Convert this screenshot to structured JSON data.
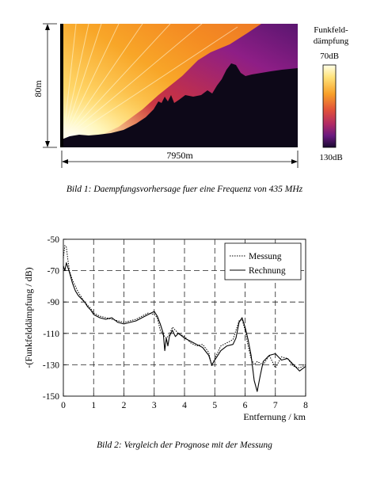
{
  "figure1": {
    "height_label": "80m",
    "width_label": "7950m",
    "legend_title_line1": "Funkfeld-",
    "legend_title_line2": "dämpfung",
    "legend_top": "70dB",
    "legend_bottom": "130dB",
    "caption": "Bild 1: Daempfungsvorhersage fuer eine Frequenz von 435 MHz",
    "colors": {
      "terrain": "#0d0818",
      "hot": "#fff4c8",
      "warm": "#f6a020",
      "mid": "#d0403a",
      "cool": "#8a1e8c",
      "cold": "#4a1468"
    }
  },
  "figure2": {
    "caption": "Bild 2: Vergleich der Prognose mit der Messung",
    "chart_data": {
      "type": "line",
      "title": "",
      "xlabel": "Entfernung / km",
      "ylabel": "-(Funkfelddämpfung / dB)",
      "xlim": [
        0,
        8
      ],
      "ylim": [
        -150,
        -50
      ],
      "xticks": [
        "0",
        "1",
        "2",
        "3",
        "4",
        "5",
        "6",
        "7",
        "8"
      ],
      "yticks": [
        "-50",
        "-70",
        "-90",
        "-110",
        "-130",
        "-150"
      ],
      "grid": "dashed",
      "legend_position": "top-right",
      "series": [
        {
          "name": "Messung",
          "style": "dotted",
          "x": [
            0.0,
            0.05,
            0.1,
            0.15,
            0.2,
            0.3,
            0.4,
            0.5,
            0.6,
            0.7,
            0.8,
            0.9,
            1.0,
            1.2,
            1.4,
            1.6,
            1.8,
            2.0,
            2.2,
            2.4,
            2.6,
            2.8,
            3.0,
            3.1,
            3.2,
            3.3,
            3.4,
            3.5,
            3.6,
            3.7,
            3.8,
            4.0,
            4.2,
            4.4,
            4.6,
            4.8,
            4.9,
            5.0,
            5.2,
            5.4,
            5.6,
            5.8,
            5.9,
            6.0,
            6.1,
            6.2,
            6.3,
            6.4,
            6.6,
            6.8,
            7.0,
            7.2,
            7.4,
            7.6,
            7.8,
            8.0
          ],
          "y": [
            -62,
            -54,
            -55,
            -63,
            -70,
            -76,
            -80,
            -84,
            -87,
            -90,
            -92,
            -94,
            -97,
            -99,
            -100,
            -101,
            -102,
            -103,
            -102,
            -101,
            -99,
            -97,
            -98,
            -100,
            -108,
            -111,
            -113,
            -111,
            -106,
            -108,
            -110,
            -112,
            -116,
            -118,
            -117,
            -122,
            -131,
            -126,
            -118,
            -116,
            -114,
            -102,
            -101,
            -108,
            -118,
            -126,
            -130,
            -128,
            -130,
            -124,
            -132,
            -125,
            -126,
            -131,
            -132,
            -130
          ]
        },
        {
          "name": "Rechnung",
          "style": "solid",
          "x": [
            0.0,
            0.05,
            0.1,
            0.15,
            0.2,
            0.3,
            0.4,
            0.5,
            0.6,
            0.7,
            0.8,
            0.9,
            1.0,
            1.2,
            1.4,
            1.6,
            1.8,
            2.0,
            2.2,
            2.4,
            2.6,
            2.8,
            3.0,
            3.1,
            3.2,
            3.3,
            3.35,
            3.4,
            3.45,
            3.5,
            3.6,
            3.7,
            3.8,
            4.0,
            4.2,
            4.4,
            4.6,
            4.8,
            4.9,
            5.0,
            5.2,
            5.4,
            5.6,
            5.7,
            5.8,
            5.9,
            6.0,
            6.1,
            6.2,
            6.3,
            6.4,
            6.5,
            6.6,
            6.8,
            7.0,
            7.2,
            7.4,
            7.6,
            7.8,
            8.0
          ],
          "y": [
            -67,
            -70,
            -65,
            -68,
            -71,
            -78,
            -83,
            -86,
            -88,
            -90,
            -93,
            -95,
            -98,
            -100,
            -101,
            -100,
            -103,
            -104,
            -103,
            -102,
            -100,
            -98,
            -96,
            -99,
            -104,
            -110,
            -121,
            -113,
            -118,
            -112,
            -108,
            -112,
            -110,
            -113,
            -115,
            -117,
            -119,
            -124,
            -130,
            -127,
            -121,
            -118,
            -117,
            -113,
            -103,
            -100,
            -106,
            -114,
            -124,
            -140,
            -147,
            -137,
            -128,
            -124,
            -123,
            -127,
            -126,
            -130,
            -134,
            -131
          ]
        }
      ]
    }
  }
}
